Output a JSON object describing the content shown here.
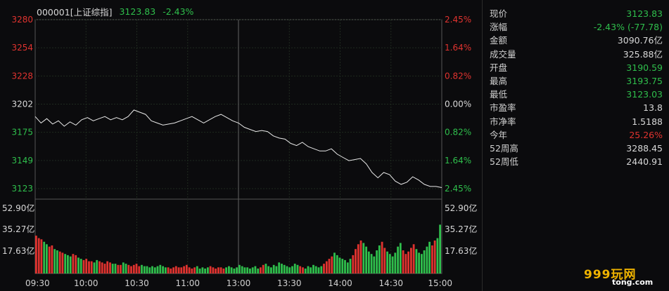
{
  "header": {
    "code": "000001[上证综指]",
    "price": "3123.83",
    "change_pct": "-2.43%"
  },
  "chart_data": {
    "type": "line",
    "title": "000001[上证综指]",
    "y_left_ticks": [
      "3280",
      "3254",
      "3228",
      "3202",
      "3175",
      "3149",
      "3123"
    ],
    "y_right_ticks": [
      "2.45%",
      "1.64%",
      "0.82%",
      "0.00%",
      "0.82%",
      "1.64%",
      "2.45%"
    ],
    "ylim": [
      3123,
      3280
    ],
    "prev_close": 3202,
    "x_ticks": [
      "09:30",
      "10:00",
      "10:30",
      "11:00",
      "13:00",
      "13:30",
      "14:00",
      "14:30",
      "15:00"
    ],
    "price_series": [
      3190,
      3184,
      3188,
      3183,
      3186,
      3181,
      3185,
      3182,
      3187,
      3189,
      3186,
      3188,
      3190,
      3187,
      3189,
      3187,
      3190,
      3196,
      3194,
      3192,
      3186,
      3184,
      3182,
      3183,
      3184,
      3186,
      3188,
      3190,
      3187,
      3184,
      3187,
      3190,
      3192,
      3189,
      3186,
      3184,
      3180,
      3178,
      3176,
      3177,
      3176,
      3172,
      3170,
      3169,
      3165,
      3163,
      3166,
      3162,
      3160,
      3158,
      3158,
      3160,
      3155,
      3152,
      3149,
      3150,
      3151,
      3146,
      3138,
      3133,
      3138,
      3136,
      3130,
      3127,
      3129,
      3134,
      3131,
      3127,
      3125,
      3125,
      3124
    ],
    "volume_ylabels": [
      "52.90亿",
      "35.27亿",
      "17.63亿"
    ],
    "volume_ylim": [
      0,
      52.9
    ],
    "volume_values": [
      31,
      29,
      28,
      26,
      24,
      22,
      23,
      20,
      19,
      18,
      17,
      16,
      15,
      14,
      16,
      15,
      13,
      12,
      11,
      12,
      10,
      10,
      9,
      11,
      10,
      9,
      8,
      10,
      9,
      8,
      8,
      7,
      7,
      9,
      8,
      7,
      6,
      7,
      8,
      6,
      7,
      6,
      6,
      5,
      6,
      5,
      6,
      7,
      6,
      5,
      5,
      4,
      5,
      6,
      5,
      5,
      6,
      7,
      5,
      4,
      5,
      6,
      4,
      5,
      4,
      5,
      6,
      5,
      4,
      5,
      5,
      4,
      5,
      6,
      5,
      4,
      5,
      7,
      6,
      5,
      5,
      4,
      5,
      6,
      4,
      5,
      7,
      8,
      6,
      5,
      7,
      6,
      9,
      8,
      7,
      6,
      5,
      6,
      8,
      7,
      6,
      5,
      4,
      6,
      5,
      7,
      6,
      5,
      6,
      8,
      10,
      12,
      14,
      17,
      15,
      13,
      12,
      11,
      9,
      12,
      15,
      20,
      24,
      27,
      25,
      22,
      18,
      16,
      14,
      19,
      23,
      26,
      21,
      18,
      16,
      14,
      17,
      22,
      25,
      19,
      16,
      18,
      21,
      24,
      20,
      17,
      16,
      19,
      22,
      26,
      23,
      27,
      29,
      40
    ]
  },
  "quote": {
    "rows": [
      {
        "label": "现价",
        "value": "3123.83",
        "tone": "green"
      },
      {
        "label": "涨幅",
        "value": "-2.43% (-77.78)",
        "tone": "green"
      },
      {
        "label": "金额",
        "value": "3090.76亿",
        "tone": "white"
      },
      {
        "label": "成交量",
        "value": "325.88亿",
        "tone": "white"
      },
      {
        "label": "开盘",
        "value": "3190.59",
        "tone": "green"
      },
      {
        "label": "最高",
        "value": "3193.75",
        "tone": "green"
      },
      {
        "label": "最低",
        "value": "3123.03",
        "tone": "green"
      },
      {
        "label": "市盈率",
        "value": "13.8",
        "tone": "white"
      },
      {
        "label": "市净率",
        "value": "1.5188",
        "tone": "white"
      },
      {
        "label": "今年",
        "value": "25.26%",
        "tone": "red"
      },
      {
        "label": "52周高",
        "value": "3288.45",
        "tone": "white"
      },
      {
        "label": "52周低",
        "value": "2440.91",
        "tone": "white"
      }
    ]
  },
  "logo": {
    "main": "999玩网",
    "sub": "tong.com"
  },
  "colors": {
    "up": "#e0332f",
    "down": "#2fbf4c",
    "line": "#e8e8e8",
    "grid": "#1f2a1f",
    "border": "#555555"
  }
}
